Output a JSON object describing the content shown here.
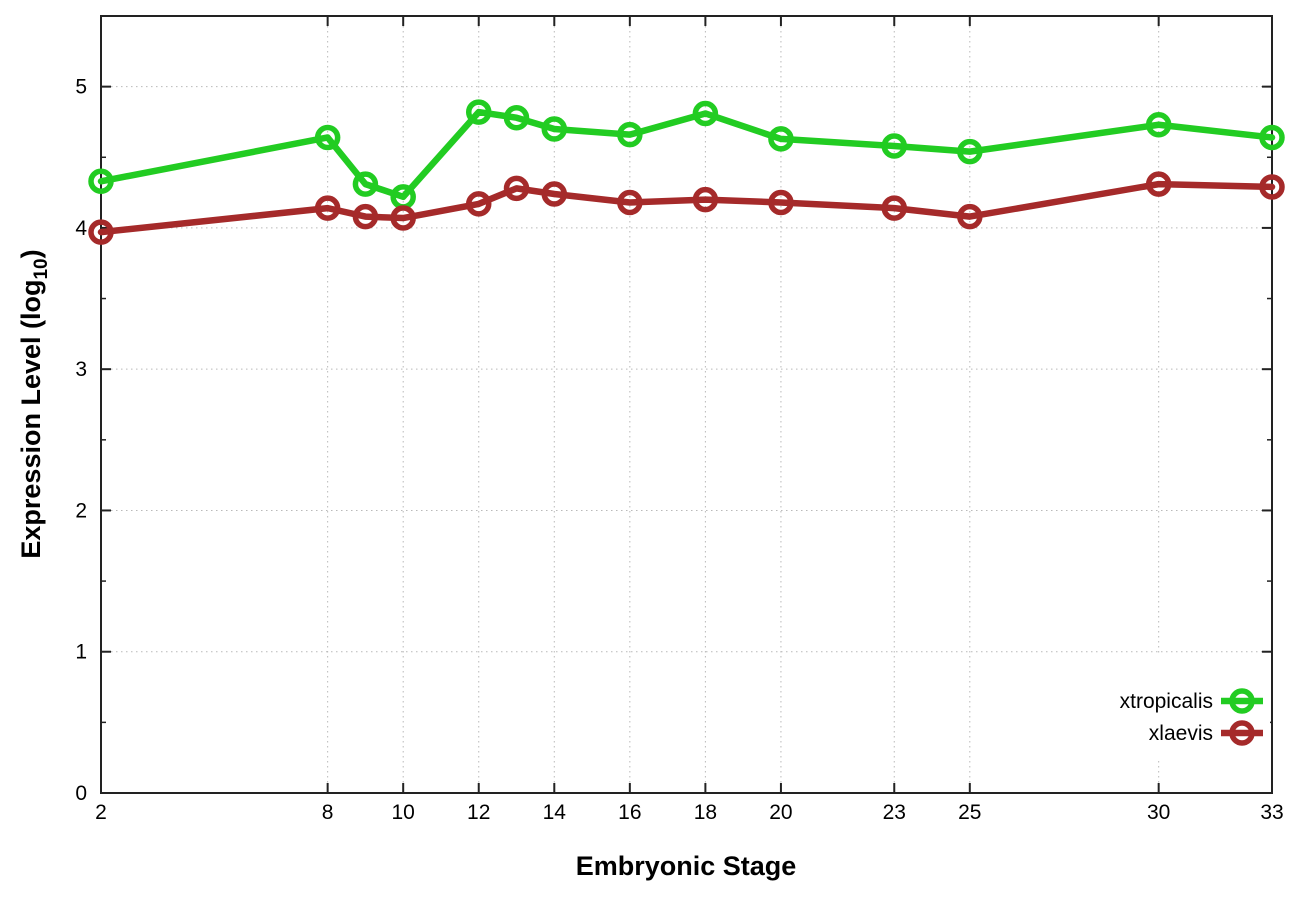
{
  "chart_data": {
    "type": "line",
    "title": "",
    "xlabel": "Embryonic Stage",
    "ylabel": "Expression Level (log10)",
    "ylabel_parts": {
      "pre": "Expression Level (log",
      "sub": "10",
      "post": ")"
    },
    "xlim": [
      2,
      33
    ],
    "ylim": [
      0,
      5.5
    ],
    "x_ticks": [
      2,
      8,
      10,
      12,
      14,
      16,
      18,
      20,
      23,
      25,
      30,
      33
    ],
    "y_ticks": [
      0,
      1,
      2,
      3,
      4,
      5
    ],
    "y_minor_step": 0.5,
    "grid": true,
    "legend_position": "right-center-inside",
    "x": [
      2,
      8,
      9,
      10,
      12,
      13,
      14,
      16,
      18,
      20,
      23,
      25,
      30,
      33
    ],
    "series": [
      {
        "name": "xtropicalis",
        "color": "#22CC22",
        "values": [
          4.33,
          4.64,
          4.31,
          4.22,
          4.82,
          4.78,
          4.7,
          4.66,
          4.81,
          4.63,
          4.58,
          4.54,
          4.73,
          4.64
        ]
      },
      {
        "name": "xlaevis",
        "color": "#A52A2A",
        "values": [
          3.97,
          4.14,
          4.08,
          4.07,
          4.17,
          4.28,
          4.24,
          4.18,
          4.2,
          4.18,
          4.14,
          4.08,
          4.31,
          4.29
        ]
      }
    ],
    "colors": {
      "background": "#ffffff",
      "grid": "#b9b9b9",
      "axis": "#222222",
      "text": "#000000"
    }
  }
}
